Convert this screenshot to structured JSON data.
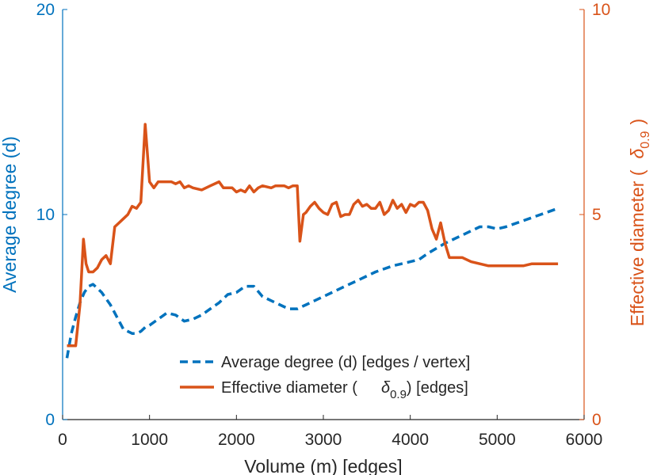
{
  "chart_data": {
    "type": "line",
    "xlabel": "Volume (m) [edges]",
    "ylabel_left": "Average degree (d)",
    "ylabel_right": "Effective diameter (δ0.9)",
    "ylabel_right_parts": {
      "prefix": "Effective diameter (",
      "symbol": "δ",
      "subscript": "0.9",
      "suffix": ")"
    },
    "xlim": [
      0,
      6000
    ],
    "ylim_left": [
      0,
      20
    ],
    "ylim_right": [
      0,
      10
    ],
    "x_ticks": [
      0,
      1000,
      2000,
      3000,
      4000,
      5000,
      6000
    ],
    "y_left_ticks": [
      0,
      10,
      20
    ],
    "y_right_ticks": [
      0,
      5,
      10
    ],
    "grid": false,
    "legend_position": "bottom-center",
    "colors": {
      "left": "#0072BD",
      "right": "#D95319",
      "axis": "#262626"
    },
    "series": [
      {
        "name": "Average degree (d) [edges / vertex]",
        "legend_parts": {
          "text": "Average degree (d) [edges / vertex]"
        },
        "axis": "left",
        "style": "dashed",
        "x": [
          50,
          100,
          150,
          200,
          250,
          300,
          350,
          400,
          450,
          500,
          550,
          600,
          650,
          700,
          750,
          800,
          850,
          900,
          950,
          1000,
          1100,
          1200,
          1300,
          1400,
          1500,
          1600,
          1700,
          1800,
          1900,
          2000,
          2100,
          2200,
          2300,
          2400,
          2500,
          2600,
          2700,
          2800,
          2900,
          3000,
          3200,
          3400,
          3600,
          3800,
          4000,
          4100,
          4200,
          4400,
          4600,
          4800,
          4900,
          5000,
          5100,
          5300,
          5500,
          5700
        ],
        "y": [
          3.0,
          4.2,
          5.0,
          5.7,
          6.2,
          6.5,
          6.6,
          6.4,
          6.2,
          5.9,
          5.6,
          5.2,
          4.8,
          4.4,
          4.3,
          4.2,
          4.2,
          4.3,
          4.5,
          4.6,
          4.9,
          5.2,
          5.1,
          4.8,
          4.9,
          5.1,
          5.4,
          5.7,
          6.1,
          6.2,
          6.5,
          6.5,
          6.0,
          5.8,
          5.6,
          5.4,
          5.4,
          5.6,
          5.8,
          6.0,
          6.4,
          6.8,
          7.2,
          7.5,
          7.7,
          7.8,
          8.1,
          8.6,
          9.0,
          9.4,
          9.4,
          9.3,
          9.4,
          9.7,
          10.0,
          10.3
        ]
      },
      {
        "name": "Effective diameter (δ0.9) [edges]",
        "legend_parts": {
          "prefix": "Effective diameter (",
          "symbol": "δ",
          "subscript": "0.9",
          "suffix": ") [edges]"
        },
        "axis": "right",
        "style": "solid",
        "x": [
          50,
          100,
          150,
          200,
          240,
          270,
          300,
          350,
          400,
          450,
          500,
          550,
          600,
          650,
          700,
          750,
          800,
          850,
          900,
          950,
          1000,
          1050,
          1100,
          1150,
          1200,
          1250,
          1300,
          1350,
          1400,
          1450,
          1500,
          1600,
          1700,
          1800,
          1850,
          1900,
          1950,
          2000,
          2050,
          2100,
          2150,
          2200,
          2250,
          2300,
          2400,
          2450,
          2500,
          2550,
          2600,
          2650,
          2700,
          2730,
          2770,
          2800,
          2850,
          2900,
          2950,
          3000,
          3050,
          3100,
          3150,
          3200,
          3250,
          3300,
          3350,
          3400,
          3450,
          3500,
          3550,
          3600,
          3650,
          3700,
          3750,
          3800,
          3850,
          3900,
          3950,
          4000,
          4050,
          4100,
          4150,
          4200,
          4250,
          4300,
          4350,
          4400,
          4450,
          4500,
          4600,
          4700,
          4800,
          4900,
          5000,
          5100,
          5200,
          5300,
          5400,
          5500,
          5600,
          5700
        ],
        "y": [
          1.8,
          1.8,
          1.8,
          2.8,
          4.4,
          3.8,
          3.6,
          3.6,
          3.7,
          3.9,
          4.0,
          3.8,
          4.7,
          4.8,
          4.9,
          5.0,
          5.2,
          5.15,
          5.3,
          7.2,
          5.8,
          5.65,
          5.8,
          5.8,
          5.8,
          5.8,
          5.75,
          5.8,
          5.65,
          5.7,
          5.65,
          5.6,
          5.7,
          5.8,
          5.65,
          5.65,
          5.65,
          5.55,
          5.6,
          5.55,
          5.7,
          5.55,
          5.65,
          5.7,
          5.65,
          5.7,
          5.7,
          5.7,
          5.65,
          5.7,
          5.7,
          4.35,
          5.0,
          5.05,
          5.2,
          5.3,
          5.15,
          5.05,
          5.0,
          5.25,
          5.3,
          4.95,
          5.0,
          5.0,
          5.25,
          5.35,
          5.2,
          5.25,
          5.15,
          5.15,
          5.3,
          5.0,
          5.1,
          5.35,
          5.15,
          5.25,
          5.05,
          5.25,
          5.2,
          5.3,
          5.3,
          5.1,
          4.65,
          4.4,
          4.8,
          4.3,
          3.95,
          3.95,
          3.95,
          3.85,
          3.8,
          3.75,
          3.75,
          3.75,
          3.75,
          3.75,
          3.8,
          3.8,
          3.8,
          3.8
        ]
      }
    ]
  }
}
